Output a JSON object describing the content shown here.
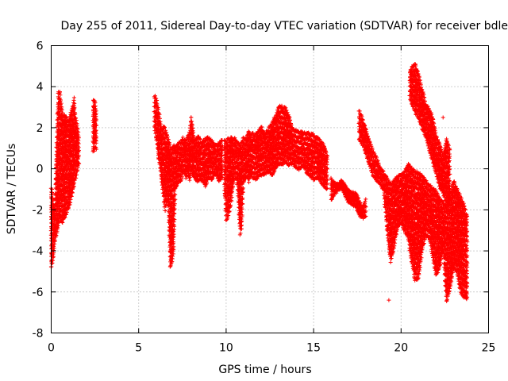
{
  "chart_data": {
    "type": "scatter",
    "title": "Day 255 of 2011, Sidereal Day-to-day VTEC variation (SDTVAR) for receiver bdle",
    "xlabel": "GPS time / hours",
    "ylabel": "SDTVAR / TECUs",
    "xlim": [
      0,
      25
    ],
    "ylim": [
      -8,
      6
    ],
    "xticks": [
      0,
      5,
      10,
      15,
      20,
      25
    ],
    "yticks": [
      -8,
      -6,
      -4,
      -2,
      0,
      2,
      4,
      6
    ],
    "grid": true,
    "marker": "+",
    "color": "#ff0000",
    "series": [
      {
        "name": "SDTVAR",
        "segments": [
          {
            "x": [
              0.0,
              0.1,
              0.2,
              0.3,
              0.4,
              0.5,
              0.6,
              0.7,
              0.8,
              0.9,
              1.0,
              1.1,
              1.2,
              1.3,
              1.4,
              1.5,
              1.6
            ],
            "low": [
              -4.8,
              -4.4,
              -3.5,
              -3.2,
              -2.8,
              -2.4,
              -2.6,
              -2.5,
              -2.3,
              -2.1,
              -1.9,
              -1.6,
              -1.2,
              -0.8,
              -0.4,
              0.0,
              0.4
            ],
            "high": [
              -1.0,
              -1.5,
              -2.0,
              1.0,
              3.7,
              3.7,
              3.0,
              2.5,
              2.6,
              2.4,
              2.3,
              2.6,
              2.9,
              3.4,
              2.5,
              2.0,
              1.3
            ]
          },
          {
            "x": [
              2.4,
              2.5,
              2.6
            ],
            "low": [
              0.8,
              1.1,
              1.0
            ],
            "high": [
              3.3,
              3.2,
              2.5
            ]
          },
          {
            "x": [
              5.9,
              6.0,
              6.1,
              6.2,
              6.3,
              6.4,
              6.5,
              6.6,
              6.7,
              6.8,
              6.9,
              7.0,
              7.1,
              7.2,
              7.3,
              7.4,
              7.5,
              7.6,
              7.7,
              7.8,
              7.9,
              8.0,
              8.2,
              8.4,
              8.6,
              8.8,
              9.0,
              9.2,
              9.4,
              9.6,
              9.8
            ],
            "low": [
              2.0,
              1.5,
              0.8,
              0.2,
              -0.5,
              -1.2,
              -2.0,
              -1.5,
              -1.8,
              -4.8,
              -4.5,
              -4.0,
              -1.0,
              -0.8,
              -0.5,
              -0.6,
              -0.3,
              0.0,
              -0.4,
              -0.2,
              -0.5,
              -0.1,
              -0.4,
              -0.6,
              -0.5,
              -0.8,
              -0.4,
              -0.5,
              -0.2,
              -0.6,
              -0.3
            ],
            "high": [
              3.5,
              3.5,
              3.0,
              2.5,
              1.9,
              2.0,
              2.0,
              1.6,
              1.4,
              1.0,
              0.8,
              1.2,
              1.0,
              1.1,
              1.3,
              1.2,
              1.5,
              1.4,
              1.3,
              1.5,
              1.8,
              2.5,
              1.3,
              1.6,
              1.2,
              1.4,
              1.5,
              1.3,
              1.1,
              1.2,
              1.4
            ]
          },
          {
            "x": [
              9.9,
              10.0,
              10.1,
              10.2,
              10.3,
              10.4,
              10.5,
              10.6,
              10.7,
              10.8,
              10.9,
              11.0,
              11.1,
              11.2,
              11.3,
              11.4,
              11.5,
              11.6,
              11.8,
              12.0,
              12.2,
              12.4,
              12.6,
              12.8,
              13.0,
              13.2,
              13.4,
              13.6,
              13.8,
              14.0,
              14.2,
              14.4,
              14.6,
              14.8,
              15.0,
              15.2,
              15.4,
              15.6,
              15.8
            ],
            "low": [
              -1.0,
              -2.5,
              -2.3,
              -2.0,
              -1.5,
              -0.8,
              -0.4,
              -0.5,
              -1.5,
              -3.2,
              -2.8,
              -0.6,
              -0.5,
              -0.3,
              -0.6,
              -0.3,
              -0.4,
              -0.5,
              -0.4,
              -0.3,
              -0.2,
              -0.1,
              -0.3,
              0.0,
              0.3,
              0.2,
              0.4,
              0.2,
              0.3,
              0.1,
              0.0,
              0.2,
              -0.2,
              -0.3,
              -0.5,
              -0.4,
              -0.6,
              -0.8,
              -1.0
            ],
            "high": [
              1.4,
              1.2,
              1.5,
              1.3,
              1.6,
              1.4,
              1.5,
              1.3,
              1.2,
              1.0,
              1.3,
              1.5,
              1.4,
              1.6,
              1.8,
              1.5,
              1.7,
              1.6,
              1.8,
              2.0,
              1.7,
              1.9,
              2.2,
              2.5,
              3.0,
              3.0,
              2.9,
              2.5,
              1.9,
              1.8,
              1.8,
              1.7,
              1.7,
              1.7,
              1.6,
              1.5,
              1.3,
              1.1,
              0.6
            ]
          },
          {
            "x": [
              16.0,
              16.2,
              16.4,
              16.6,
              16.8,
              17.0,
              17.2,
              17.4,
              17.6,
              17.8,
              18.0
            ],
            "low": [
              -1.5,
              -1.2,
              -1.0,
              -0.9,
              -1.3,
              -1.6,
              -1.7,
              -1.8,
              -2.2,
              -2.4,
              -2.3
            ],
            "high": [
              -0.5,
              -0.7,
              -0.8,
              -0.6,
              -0.8,
              -1.1,
              -1.2,
              -1.2,
              -1.6,
              -1.9,
              -1.5
            ]
          },
          {
            "x": [
              17.6,
              17.8,
              18.0,
              18.2,
              18.4,
              18.6,
              18.8,
              19.0,
              19.2,
              19.4,
              19.6,
              19.8,
              20.0,
              20.2,
              20.4,
              20.6,
              20.8,
              21.0,
              21.2,
              21.4,
              21.6,
              21.8,
              22.0,
              22.2,
              22.4,
              22.6,
              22.8,
              23.0,
              23.2,
              23.4,
              23.6,
              23.8
            ],
            "low": [
              1.5,
              1.2,
              0.7,
              0.2,
              -0.3,
              -0.6,
              -0.7,
              -1.0,
              -3.0,
              -4.5,
              -3.8,
              -2.8,
              -2.6,
              -3.0,
              -3.3,
              -4.5,
              -5.4,
              -5.3,
              -4.0,
              -3.2,
              -3.3,
              -4.2,
              -5.2,
              -4.8,
              -4.0,
              -6.5,
              -5.8,
              -4.8,
              -5.0,
              -6.0,
              -6.2,
              -6.3
            ],
            "high": [
              2.8,
              2.4,
              1.9,
              1.3,
              0.8,
              0.5,
              0.0,
              -0.2,
              -0.5,
              -0.8,
              -0.6,
              -0.4,
              -0.3,
              -0.2,
              0.2,
              0.0,
              -0.2,
              -0.2,
              -0.4,
              -0.6,
              -0.8,
              -1.0,
              -1.1,
              -1.5,
              -1.7,
              -1.9,
              -1.2,
              -0.6,
              -1.0,
              -1.4,
              -1.8,
              -2.4
            ]
          },
          {
            "x": [
              20.5,
              20.6,
              20.8,
              21.0,
              21.2,
              21.4,
              21.6,
              21.8,
              22.0,
              22.2,
              22.4,
              22.6,
              22.8
            ],
            "low": [
              3.5,
              3.2,
              2.8,
              2.5,
              2.0,
              1.6,
              1.0,
              0.4,
              -0.2,
              -0.8,
              -1.2,
              -1.6,
              -1.8
            ],
            "high": [
              4.7,
              4.9,
              5.1,
              4.6,
              3.8,
              3.2,
              2.9,
              2.5,
              1.6,
              1.2,
              0.6,
              1.4,
              0.8
            ]
          }
        ],
        "outliers": [
          {
            "x": 19.3,
            "y": -6.4
          },
          {
            "x": 22.4,
            "y": 2.5
          },
          {
            "x": 0.05,
            "y": -1.0
          },
          {
            "x": 8.0,
            "y": 2.5
          },
          {
            "x": 2.5,
            "y": 3.3
          }
        ]
      }
    ]
  }
}
